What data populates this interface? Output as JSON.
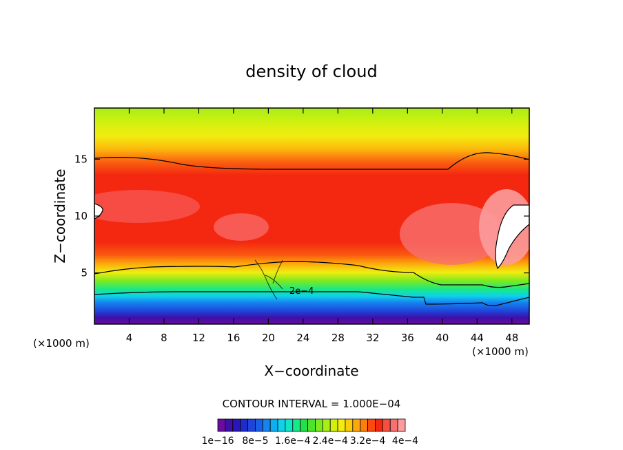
{
  "chart_data": {
    "type": "heatmap",
    "title": "density of cloud",
    "xlabel": "X−coordinate",
    "ylabel": "Z−coordinate",
    "x_unit_left": "(×1000 m)",
    "x_unit_right": "(×1000 m)",
    "xlim": [
      0,
      50
    ],
    "ylim": [
      0.5,
      19.5
    ],
    "x_ticks": [
      4,
      8,
      12,
      16,
      20,
      24,
      28,
      32,
      36,
      40,
      44,
      48
    ],
    "y_ticks": [
      5,
      10,
      15
    ],
    "contour_interval_text": "CONTOUR INTERVAL = 1.000E−04",
    "contour_label": "2e−4",
    "colorbar": {
      "colors": [
        "#6a0d9e",
        "#3d10a8",
        "#2a16b8",
        "#1f2ccb",
        "#1f44da",
        "#1a5ee6",
        "#1684ee",
        "#10aef0",
        "#0fd2ea",
        "#10e6c4",
        "#18e888",
        "#24e04a",
        "#4ce42a",
        "#7cea20",
        "#a8ee18",
        "#d2f010",
        "#f2ec10",
        "#fccc0c",
        "#fca80c",
        "#fc7e0c",
        "#fa4a0c",
        "#f42810",
        "#f45040",
        "#f87070",
        "#fc9c9c"
      ],
      "labels": [
        "1e−16",
        "8e−5",
        "1.6e−4",
        "2.4e−4",
        "3.2e−4",
        "4e−4"
      ]
    }
  }
}
